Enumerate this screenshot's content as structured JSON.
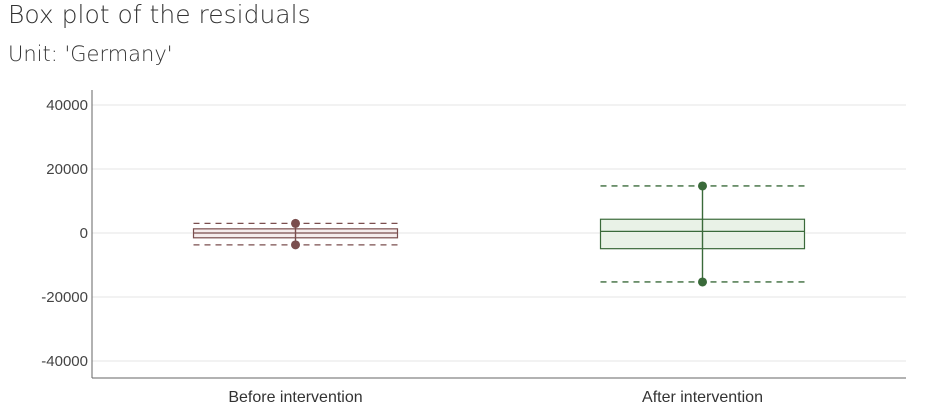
{
  "title": "Box plot of the residuals",
  "subtitle": "Unit: 'Germany'",
  "chart_data": {
    "type": "box",
    "title": "Box plot of the residuals",
    "subtitle": "Unit: 'Germany'",
    "xlabel": "",
    "ylabel": "",
    "ylim": [
      -45000,
      41000
    ],
    "yticks": [
      40000,
      20000,
      0,
      -20000,
      -40000
    ],
    "grid": true,
    "categories": [
      "Before intervention",
      "After intervention"
    ],
    "boxes": [
      {
        "name": "Before intervention",
        "whisker_high": 3000,
        "q3": 1300,
        "median": 0,
        "q1": -1500,
        "whisker_low": -3700,
        "dashed_high": 3000,
        "dashed_low": -3700,
        "color": "#7a4e4e",
        "fill": "#f6eded"
      },
      {
        "name": "After intervention",
        "whisker_high": 14700,
        "q3": 4300,
        "median": 500,
        "q1": -4900,
        "whisker_low": -15300,
        "dashed_high": 14700,
        "dashed_low": -15300,
        "color": "#3a6a3a",
        "fill": "#e9f2e7"
      }
    ]
  }
}
